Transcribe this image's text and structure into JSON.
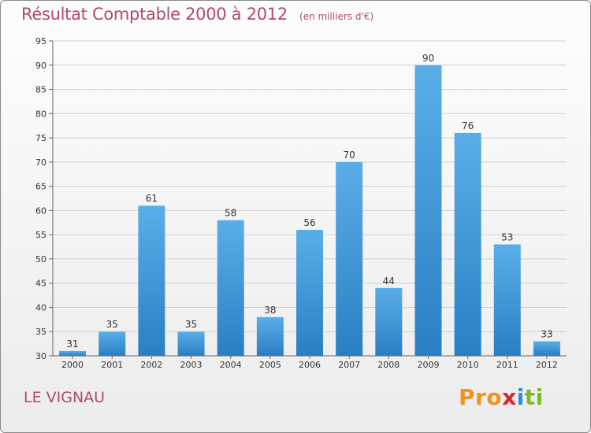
{
  "chart_data": {
    "type": "bar",
    "title": "Résultat Comptable 2000 à 2012",
    "unit": "(en milliers d'€)",
    "place": "LE VIGNAU",
    "categories": [
      "2000",
      "2001",
      "2002",
      "2003",
      "2004",
      "2005",
      "2006",
      "2007",
      "2008",
      "2009",
      "2010",
      "2011",
      "2012"
    ],
    "values": [
      31,
      35,
      61,
      35,
      58,
      38,
      56,
      70,
      44,
      90,
      76,
      53,
      33
    ],
    "ylim": [
      30,
      95
    ],
    "yticks": [
      30,
      35,
      40,
      45,
      50,
      55,
      60,
      65,
      70,
      75,
      80,
      85,
      90,
      95
    ],
    "bar_color_top": "#5aaee8",
    "bar_color_bottom": "#2a7fc4",
    "title_color": "#b04a6e"
  },
  "logo": {
    "p1": "Pro",
    "p2": "x",
    "p3": "i",
    "p4": "ti"
  }
}
